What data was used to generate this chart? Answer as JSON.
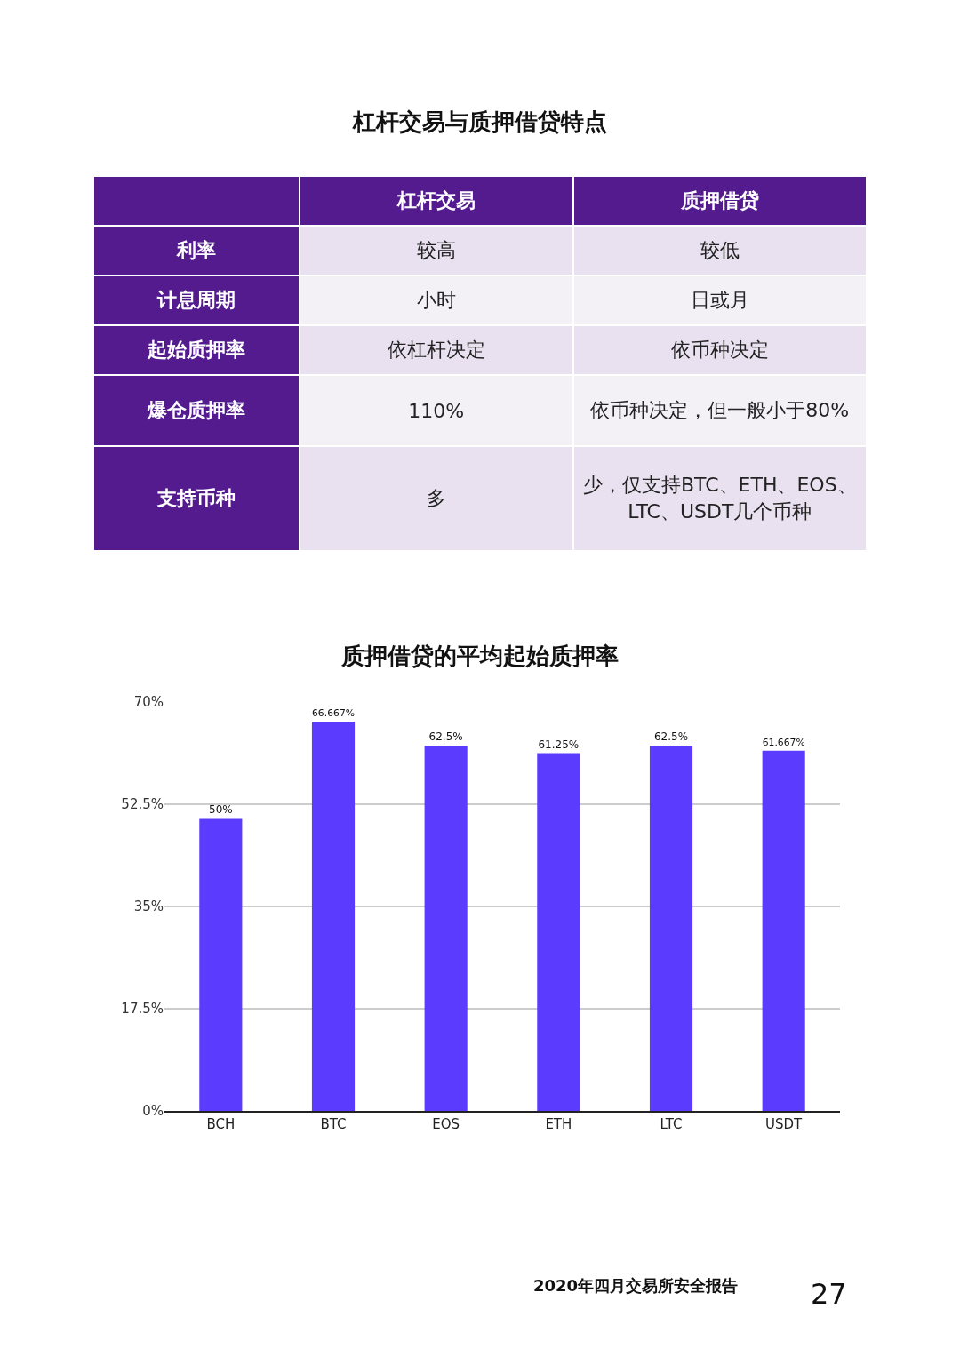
{
  "chart_data": [
    {
      "type": "other",
      "title": "杠杆交易与质押借贷特点",
      "color": "#541b8f",
      "categories": [
        "杠杆交易",
        "质押借贷"
      ],
      "y_categories": [
        "利率",
        "计息周期",
        "起始质押率",
        "爆仓质押率",
        "支持币种"
      ],
      "cell_labels": [
        [
          "较高",
          "较低"
        ],
        [
          "小时",
          "日或月"
        ],
        [
          "依杠杆决定",
          "依币种决定"
        ],
        [
          "110%",
          "依币种决定，但一般小于80%"
        ],
        [
          "多",
          "少，仅支持BTC、ETH、EOS、LTC、USDT几个币种"
        ]
      ]
    },
    {
      "type": "bar",
      "title": "质押借贷的平均起始质押率",
      "categories": [
        "BCH",
        "BTC",
        "EOS",
        "ETH",
        "LTC",
        "USDT"
      ],
      "values": [
        50,
        66.667,
        62.5,
        61.25,
        62.5,
        61.667
      ],
      "value_labels": [
        "50%",
        "66.667%",
        "62.5%",
        "61.25%",
        "62.5%",
        "61.667%"
      ],
      "color": "#5b3cff",
      "ylim": [
        0,
        70
      ],
      "yticks": [
        {
          "value": 0,
          "label": "0%"
        },
        {
          "value": 17.5,
          "label": "17.5%"
        },
        {
          "value": 35,
          "label": "35%"
        },
        {
          "value": 52.5,
          "label": "52.5%"
        },
        {
          "value": 70,
          "label": "70%"
        }
      ],
      "grid": "y",
      "legend": false,
      "annotations": [
        "2020年四月交易所安全报告",
        "27"
      ]
    }
  ]
}
